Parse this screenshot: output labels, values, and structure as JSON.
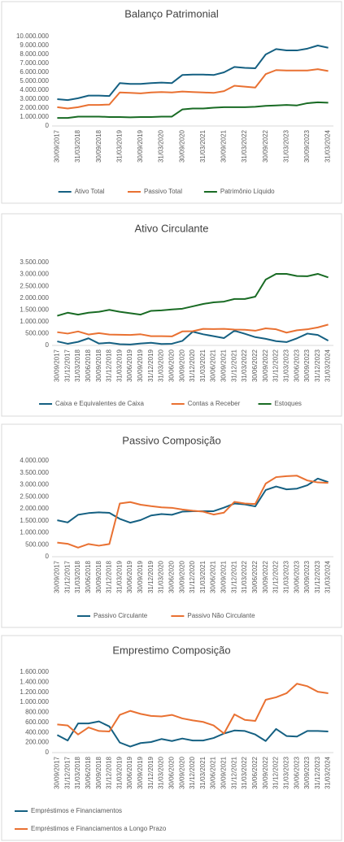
{
  "chart_data": [
    {
      "type": "line",
      "title": "Balanço Patrimonial",
      "legend": "bottom",
      "grid": false,
      "categories": [
        "30/09/2017",
        null,
        "31/03/2018",
        null,
        "30/09/2018",
        null,
        "31/03/2019",
        null,
        "30/09/2019",
        null,
        "31/03/2020",
        null,
        "30/09/2020",
        null,
        "31/03/2021",
        null,
        "30/09/2021",
        null,
        "31/03/2022",
        null,
        "30/09/2022",
        null,
        "31/03/2023",
        null,
        "30/09/2023",
        null,
        "31/03/2024"
      ],
      "ylim": [
        0,
        10000000
      ],
      "yticks": [
        0,
        {
          "value": 1000000,
          "label": "1.000.000"
        },
        {
          "value": 2000000,
          "label": "2.000.000"
        },
        {
          "value": 3000000,
          "label": "3.000.000"
        },
        {
          "value": 4000000,
          "label": "4.000.000"
        },
        {
          "value": 5000000,
          "label": "5.000.000"
        },
        {
          "value": 6000000,
          "label": "6.000.000"
        },
        {
          "value": 7000000,
          "label": "7.000.000"
        },
        {
          "value": 8000000,
          "label": "8.000.000"
        },
        {
          "value": 9000000,
          "label": "9.000.000"
        },
        {
          "value": 10000000,
          "label": "10.000.000"
        }
      ],
      "series": [
        {
          "name": "Ativo Total",
          "color": "#156082",
          "values": [
            3000000,
            2900000,
            3100000,
            3400000,
            3400000,
            3350000,
            4800000,
            4700000,
            4700000,
            4800000,
            4850000,
            4800000,
            5700000,
            5750000,
            5750000,
            5700000,
            6000000,
            6600000,
            6500000,
            6450000,
            8000000,
            8600000,
            8450000,
            8450000,
            8650000,
            9000000,
            8750000
          ]
        },
        {
          "name": "Passivo Total",
          "color": "#e97132",
          "values": [
            2100000,
            1950000,
            2100000,
            2350000,
            2350000,
            2400000,
            3750000,
            3700000,
            3650000,
            3750000,
            3800000,
            3750000,
            3850000,
            3800000,
            3750000,
            3700000,
            3900000,
            4500000,
            4400000,
            4300000,
            5800000,
            6250000,
            6200000,
            6200000,
            6200000,
            6350000,
            6150000
          ]
        },
        {
          "name": "Patrimônio Líquido",
          "color": "#196b24",
          "values": [
            900000,
            900000,
            1050000,
            1050000,
            1050000,
            1000000,
            1000000,
            970000,
            1000000,
            1000000,
            1050000,
            1050000,
            1850000,
            1950000,
            1950000,
            2050000,
            2100000,
            2100000,
            2100000,
            2150000,
            2250000,
            2300000,
            2350000,
            2300000,
            2550000,
            2650000,
            2600000
          ]
        }
      ]
    },
    {
      "type": "line",
      "title": "Ativo Circulante",
      "legend": "bottom",
      "grid": false,
      "categories": [
        "30/09/2017",
        "31/12/2017",
        "31/03/2018",
        "30/06/2018",
        "30/09/2018",
        "31/12/2018",
        "31/03/2019",
        "30/06/2019",
        "30/09/2019",
        "31/12/2019",
        "31/03/2020",
        "30/06/2020",
        "30/09/2020",
        "31/12/2020",
        "31/03/2021",
        "30/06/2021",
        "30/09/2021",
        "31/12/2021",
        "31/03/2022",
        "30/06/2022",
        "30/09/2022",
        "31/12/2022",
        "31/03/2023",
        "30/06/2023",
        "30/09/2023",
        "31/12/2023",
        "31/03/2024"
      ],
      "ylim": [
        0,
        3500000
      ],
      "yticks": [
        0,
        {
          "value": 500000,
          "label": "500.000"
        },
        {
          "value": 1000000,
          "label": "1.000.000"
        },
        {
          "value": 1500000,
          "label": "1.500.000"
        },
        {
          "value": 2000000,
          "label": "2.000.000"
        },
        {
          "value": 2500000,
          "label": "2.500.000"
        },
        {
          "value": 3000000,
          "label": "3.000.000"
        },
        {
          "value": 3500000,
          "label": "3.500.000"
        }
      ],
      "series": [
        {
          "name": "Caixa e Equivalentes de Caixa",
          "color": "#156082",
          "values": [
            170000,
            70000,
            150000,
            300000,
            80000,
            110000,
            50000,
            40000,
            80000,
            110000,
            60000,
            70000,
            190000,
            580000,
            470000,
            390000,
            310000,
            620000,
            490000,
            350000,
            280000,
            180000,
            140000,
            300000,
            500000,
            440000,
            200000
          ]
        },
        {
          "name": "Contas a Receber",
          "color": "#e97132",
          "values": [
            560000,
            500000,
            590000,
            460000,
            520000,
            460000,
            450000,
            440000,
            470000,
            390000,
            390000,
            380000,
            590000,
            600000,
            700000,
            690000,
            700000,
            670000,
            660000,
            620000,
            720000,
            680000,
            540000,
            640000,
            680000,
            760000,
            880000
          ]
        },
        {
          "name": "Estoques",
          "color": "#196b24",
          "values": [
            1250000,
            1380000,
            1300000,
            1380000,
            1420000,
            1500000,
            1420000,
            1360000,
            1300000,
            1460000,
            1480000,
            1520000,
            1550000,
            1650000,
            1750000,
            1820000,
            1850000,
            1960000,
            1960000,
            2060000,
            2780000,
            3020000,
            3020000,
            2930000,
            2920000,
            3020000,
            2870000
          ]
        }
      ]
    },
    {
      "type": "line",
      "title": "Passivo Composição",
      "legend": "bottom",
      "grid": false,
      "categories": [
        "30/09/2017",
        "31/12/2017",
        "31/03/2018",
        "30/06/2018",
        "30/09/2018",
        "31/12/2018",
        "31/03/2019",
        "30/06/2019",
        "30/09/2019",
        "31/12/2019",
        "31/03/2020",
        "30/06/2020",
        "30/09/2020",
        "31/12/2020",
        "31/03/2021",
        "30/06/2021",
        "30/09/2021",
        "31/12/2021",
        "31/03/2022",
        "30/06/2022",
        "30/09/2022",
        "31/12/2022",
        "31/03/2023",
        "30/06/2023",
        "30/09/2023",
        "31/12/2023",
        "31/03/2024"
      ],
      "ylim": [
        0,
        4000000
      ],
      "yticks": [
        0,
        {
          "value": 500000,
          "label": "500.000"
        },
        {
          "value": 1000000,
          "label": "1.000.000"
        },
        {
          "value": 1500000,
          "label": "1.500.000"
        },
        {
          "value": 2000000,
          "label": "2.000.000"
        },
        {
          "value": 2500000,
          "label": "2.500.000"
        },
        {
          "value": 3000000,
          "label": "3.000.000"
        },
        {
          "value": 3500000,
          "label": "3.500.000"
        },
        {
          "value": 4000000,
          "label": "4.000.000"
        }
      ],
      "series": [
        {
          "name": "Passivo Circulante",
          "color": "#156082",
          "values": [
            1520000,
            1430000,
            1750000,
            1820000,
            1850000,
            1830000,
            1580000,
            1420000,
            1530000,
            1720000,
            1780000,
            1750000,
            1880000,
            1900000,
            1900000,
            1900000,
            2050000,
            2220000,
            2180000,
            2100000,
            2780000,
            2930000,
            2810000,
            2840000,
            2980000,
            3260000,
            3110000
          ]
        },
        {
          "name": "Passivo Não Circulante",
          "color": "#e97132",
          "values": [
            590000,
            540000,
            380000,
            530000,
            460000,
            530000,
            2220000,
            2280000,
            2170000,
            2110000,
            2060000,
            2040000,
            1970000,
            1920000,
            1880000,
            1760000,
            1840000,
            2290000,
            2220000,
            2200000,
            3050000,
            3320000,
            3360000,
            3380000,
            3180000,
            3100000,
            3080000
          ]
        }
      ]
    },
    {
      "type": "line",
      "title": "Emprestimo Composição",
      "legend": "bottom",
      "grid": false,
      "categories": [
        "30/09/2017",
        "31/12/2017",
        "31/03/2018",
        "30/06/2018",
        "30/09/2018",
        "31/12/2018",
        "31/03/2019",
        "30/06/2019",
        "30/09/2019",
        "31/12/2019",
        "31/03/2020",
        "30/06/2020",
        "30/09/2020",
        "31/12/2020",
        "31/03/2021",
        "30/06/2021",
        "30/09/2021",
        "31/12/2021",
        "31/03/2022",
        "30/06/2022",
        "30/09/2022",
        "31/12/2022",
        "31/03/2023",
        "30/06/2023",
        "30/09/2023",
        "31/12/2023",
        "31/03/2024"
      ],
      "ylim": [
        0,
        1600000
      ],
      "yticks": [
        0,
        {
          "value": 200000,
          "label": "200.000"
        },
        {
          "value": 400000,
          "label": "400.000"
        },
        {
          "value": 600000,
          "label": "600.000"
        },
        {
          "value": 800000,
          "label": "800.000"
        },
        {
          "value": 1000000,
          "label": "1.000.000"
        },
        {
          "value": 1200000,
          "label": "1.200.000"
        },
        {
          "value": 1400000,
          "label": "1.400.000"
        },
        {
          "value": 1600000,
          "label": "1.600.000"
        }
      ],
      "series": [
        {
          "name": "Empréstimos e Financiamentos",
          "color": "#156082",
          "values": [
            350000,
            240000,
            580000,
            580000,
            620000,
            520000,
            200000,
            120000,
            190000,
            210000,
            270000,
            230000,
            280000,
            240000,
            240000,
            290000,
            380000,
            440000,
            430000,
            360000,
            230000,
            470000,
            330000,
            320000,
            430000,
            430000,
            420000
          ]
        },
        {
          "name": "Empréstimos e Financiamentos a Longo Prazo",
          "color": "#e97132",
          "values": [
            560000,
            540000,
            360000,
            500000,
            430000,
            420000,
            750000,
            830000,
            770000,
            730000,
            720000,
            750000,
            680000,
            640000,
            610000,
            540000,
            380000,
            760000,
            650000,
            630000,
            1050000,
            1100000,
            1180000,
            1370000,
            1320000,
            1210000,
            1180000
          ]
        }
      ]
    }
  ]
}
